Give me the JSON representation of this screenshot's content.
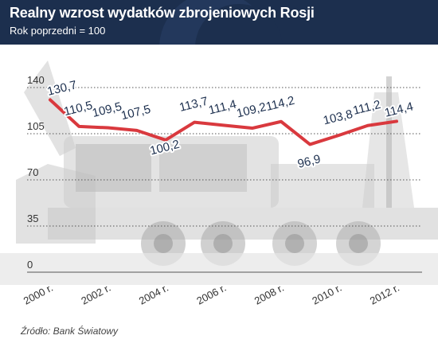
{
  "header": {
    "title": "Realny wzrost wydatków zbrojeniowych Rosji",
    "subtitle": "Rok poprzedni = 100"
  },
  "source": "Źródło: Bank Światowy",
  "colors": {
    "header_bg": "#1c2f4e",
    "line": "#d9393e",
    "label": "#1c2f4e",
    "grid": "#555555"
  },
  "chart_data": {
    "type": "line",
    "title": "Realny wzrost wydatków zbrojeniowych Rosji",
    "subtitle": "Rok poprzedni = 100",
    "xlabel": "",
    "ylabel": "",
    "x": [
      2000,
      2001,
      2002,
      2003,
      2004,
      2005,
      2006,
      2007,
      2008,
      2009,
      2010,
      2011,
      2012
    ],
    "series": [
      {
        "values": [
          130.7,
          110.5,
          109.5,
          107.5,
          100.2,
          113.7,
          111.4,
          109.2,
          114.2,
          96.9,
          103.8,
          111.2,
          114.4
        ],
        "labels": [
          "130,7",
          "110,5",
          "109,5",
          "107,5",
          "100,2",
          "113,7",
          "111,4",
          "109,2",
          "114,2",
          "96,9",
          "103,8",
          "111,2",
          "114,4"
        ]
      }
    ],
    "xtick_labels": [
      "2000 r.",
      "2002 r.",
      "2004 r.",
      "2006 r.",
      "2008 r.",
      "2010 r.",
      "2012 r."
    ],
    "xtick_years": [
      2000,
      2002,
      2004,
      2006,
      2008,
      2010,
      2012
    ],
    "yticks": [
      0,
      35,
      70,
      105,
      140
    ],
    "ylim": [
      0,
      140
    ],
    "grid": "horizontal dotted",
    "legend": "none"
  }
}
